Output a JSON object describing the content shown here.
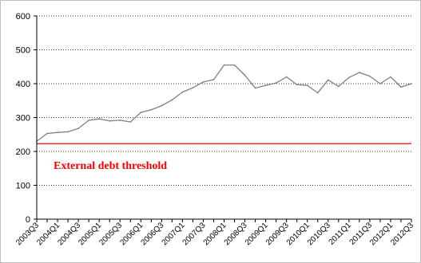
{
  "chart_data": {
    "type": "line",
    "title": "",
    "xlabel": "",
    "ylabel": "",
    "ylim": [
      0,
      600
    ],
    "y_ticks": [
      0,
      100,
      200,
      300,
      400,
      500,
      600
    ],
    "grid": "horizontal dotted",
    "x": [
      "2003Q3",
      "2003Q4",
      "2004Q1",
      "2004Q2",
      "2004Q3",
      "2004Q4",
      "2005Q1",
      "2005Q2",
      "2005Q3",
      "2005Q4",
      "2006Q1",
      "2006Q2",
      "2006Q3",
      "2006Q4",
      "2007Q1",
      "2007Q2",
      "2007Q3",
      "2007Q4",
      "2008Q1",
      "2008Q2",
      "2008Q3",
      "2008Q4",
      "2009Q1",
      "2009Q2",
      "2009Q3",
      "2009Q4",
      "2010Q1",
      "2010Q2",
      "2010Q3",
      "2010Q4",
      "2011Q1",
      "2011Q2",
      "2011Q3",
      "2011Q4",
      "2012Q1",
      "2012Q2",
      "2012Q3"
    ],
    "x_tick_labels": [
      "2003Q3",
      "2004Q1",
      "2004Q3",
      "2005Q1",
      "2005Q3",
      "2006Q1",
      "2006Q3",
      "2007Q1",
      "2007Q3",
      "2008Q1",
      "2008Q3",
      "2009Q1",
      "2009Q3",
      "2010Q1",
      "2010Q3",
      "2011Q1",
      "2011Q3",
      "2012Q1",
      "2012Q3"
    ],
    "series": [
      {
        "color": "#808080",
        "values": [
          230,
          253,
          256,
          258,
          268,
          292,
          296,
          290,
          292,
          287,
          315,
          323,
          335,
          352,
          375,
          388,
          405,
          412,
          455,
          455,
          425,
          387,
          395,
          402,
          420,
          397,
          395,
          373,
          411,
          392,
          418,
          433,
          422,
          400,
          420,
          390,
          400
        ]
      }
    ],
    "reference_line": {
      "value": 223,
      "label": "External debt threshold",
      "color": "#ff0000"
    }
  }
}
